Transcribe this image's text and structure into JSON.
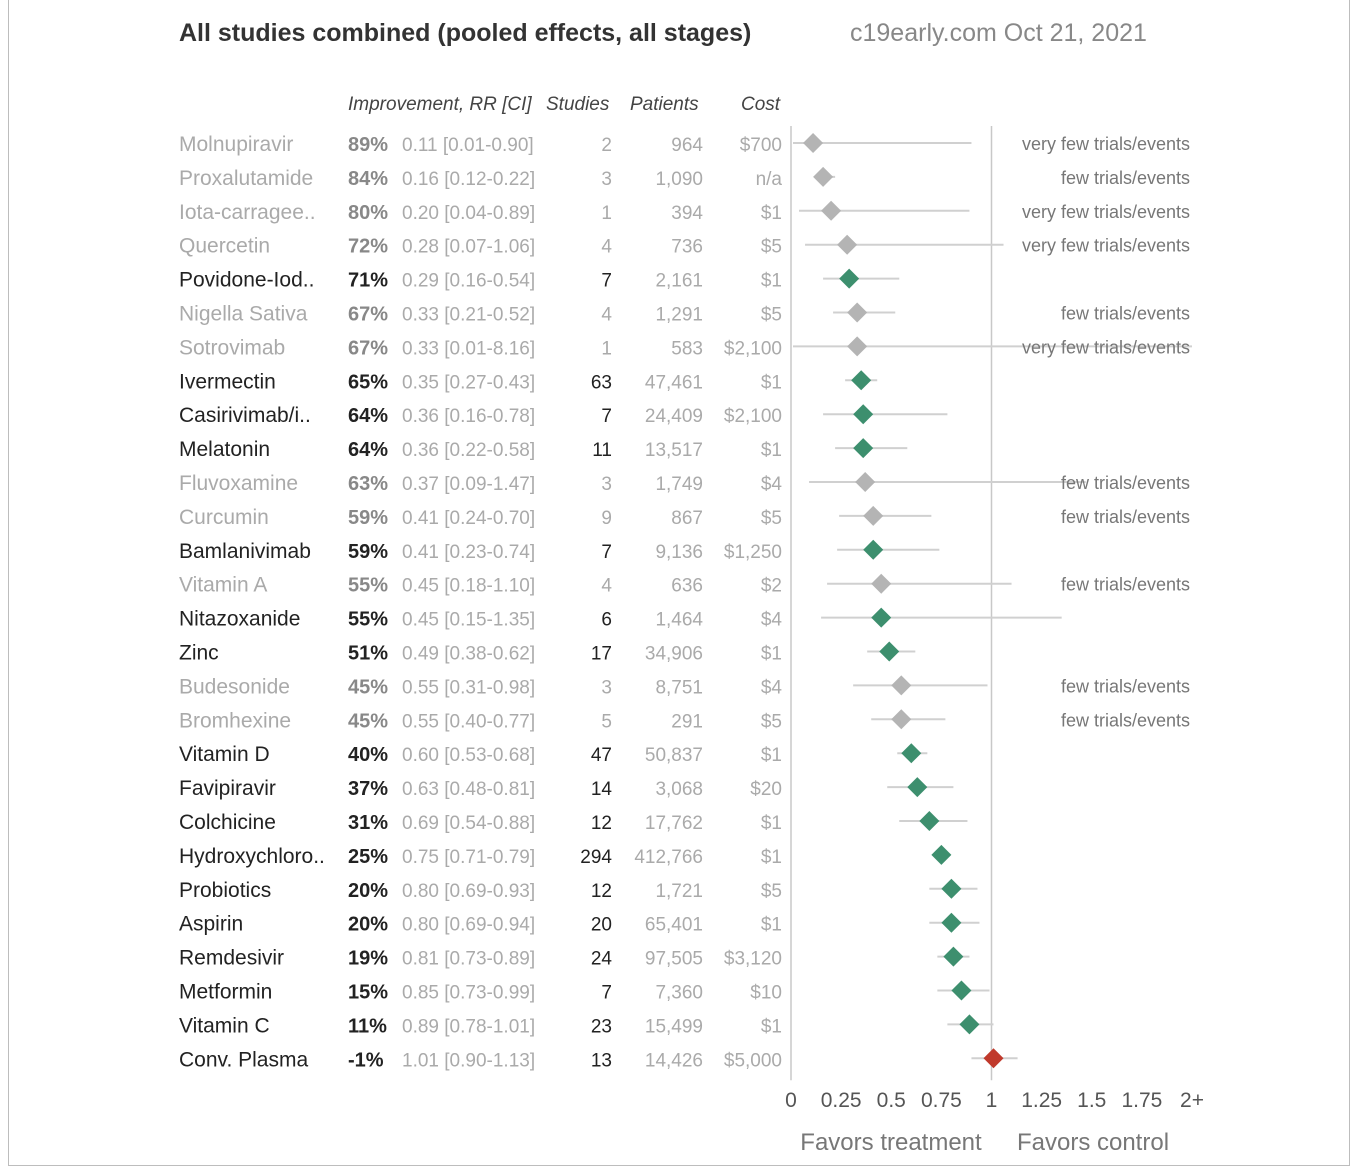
{
  "title": "All studies combined (pooled effects, all stages)",
  "source": "c19early.com Oct 21, 2021",
  "headers": {
    "improvement": "Improvement, RR [CI]",
    "studies": "Studies",
    "patients": "Patients",
    "cost": "Cost"
  },
  "colors": {
    "positive": "#3d8f6e",
    "negative": "#c0392b",
    "gray_marker": "#b4b4b4",
    "ci_line": "#d0d0d0",
    "text_dark": "#222222",
    "text_light": "#aaaaaa"
  },
  "chart_data": {
    "type": "forest",
    "x_axis": {
      "ticks": [
        "0",
        "0.25",
        "0.5",
        "0.75",
        "1",
        "1.25",
        "1.5",
        "1.75",
        "2+"
      ],
      "range": [
        0,
        2
      ],
      "left_label": "Favors treatment",
      "right_label": "Favors control"
    },
    "rows": [
      {
        "name": "Molnupiravir",
        "improvement": "89%",
        "rr": 0.11,
        "ci": [
          0.01,
          0.9
        ],
        "ci_text": "0.11 [0.01-0.90]",
        "studies": "2",
        "patients": "964",
        "cost": "$700",
        "note": "very few trials/events",
        "status": "gray"
      },
      {
        "name": "Proxalutamide",
        "improvement": "84%",
        "rr": 0.16,
        "ci": [
          0.12,
          0.22
        ],
        "ci_text": "0.16 [0.12-0.22]",
        "studies": "3",
        "patients": "1,090",
        "cost": "n/a",
        "note": "few trials/events",
        "status": "gray"
      },
      {
        "name": "Iota-carragee..",
        "improvement": "80%",
        "rr": 0.2,
        "ci": [
          0.04,
          0.89
        ],
        "ci_text": "0.20 [0.04-0.89]",
        "studies": "1",
        "patients": "394",
        "cost": "$1",
        "note": "very few trials/events",
        "status": "gray"
      },
      {
        "name": "Quercetin",
        "improvement": "72%",
        "rr": 0.28,
        "ci": [
          0.07,
          1.06
        ],
        "ci_text": "0.28 [0.07-1.06]",
        "studies": "4",
        "patients": "736",
        "cost": "$5",
        "note": "very few trials/events",
        "status": "gray"
      },
      {
        "name": "Povidone-Iod..",
        "improvement": "71%",
        "rr": 0.29,
        "ci": [
          0.16,
          0.54
        ],
        "ci_text": "0.29 [0.16-0.54]",
        "studies": "7",
        "patients": "2,161",
        "cost": "$1",
        "note": "",
        "status": "positive"
      },
      {
        "name": "Nigella Sativa",
        "improvement": "67%",
        "rr": 0.33,
        "ci": [
          0.21,
          0.52
        ],
        "ci_text": "0.33 [0.21-0.52]",
        "studies": "4",
        "patients": "1,291",
        "cost": "$5",
        "note": "few trials/events",
        "status": "gray"
      },
      {
        "name": "Sotrovimab",
        "improvement": "67%",
        "rr": 0.33,
        "ci": [
          0.01,
          8.16
        ],
        "ci_text": "0.33 [0.01-8.16]",
        "studies": "1",
        "patients": "583",
        "cost": "$2,100",
        "note": "very few trials/events",
        "status": "gray"
      },
      {
        "name": "Ivermectin",
        "improvement": "65%",
        "rr": 0.35,
        "ci": [
          0.27,
          0.43
        ],
        "ci_text": "0.35 [0.27-0.43]",
        "studies": "63",
        "patients": "47,461",
        "cost": "$1",
        "note": "",
        "status": "positive"
      },
      {
        "name": "Casirivimab/i..",
        "improvement": "64%",
        "rr": 0.36,
        "ci": [
          0.16,
          0.78
        ],
        "ci_text": "0.36 [0.16-0.78]",
        "studies": "7",
        "patients": "24,409",
        "cost": "$2,100",
        "note": "",
        "status": "positive"
      },
      {
        "name": "Melatonin",
        "improvement": "64%",
        "rr": 0.36,
        "ci": [
          0.22,
          0.58
        ],
        "ci_text": "0.36 [0.22-0.58]",
        "studies": "11",
        "patients": "13,517",
        "cost": "$1",
        "note": "",
        "status": "positive"
      },
      {
        "name": "Fluvoxamine",
        "improvement": "63%",
        "rr": 0.37,
        "ci": [
          0.09,
          1.47
        ],
        "ci_text": "0.37 [0.09-1.47]",
        "studies": "3",
        "patients": "1,749",
        "cost": "$4",
        "note": "few trials/events",
        "status": "gray"
      },
      {
        "name": "Curcumin",
        "improvement": "59%",
        "rr": 0.41,
        "ci": [
          0.24,
          0.7
        ],
        "ci_text": "0.41 [0.24-0.70]",
        "studies": "9",
        "patients": "867",
        "cost": "$5",
        "note": "few trials/events",
        "status": "gray"
      },
      {
        "name": "Bamlanivimab",
        "improvement": "59%",
        "rr": 0.41,
        "ci": [
          0.23,
          0.74
        ],
        "ci_text": "0.41 [0.23-0.74]",
        "studies": "7",
        "patients": "9,136",
        "cost": "$1,250",
        "note": "",
        "status": "positive"
      },
      {
        "name": "Vitamin A",
        "improvement": "55%",
        "rr": 0.45,
        "ci": [
          0.18,
          1.1
        ],
        "ci_text": "0.45 [0.18-1.10]",
        "studies": "4",
        "patients": "636",
        "cost": "$2",
        "note": "few trials/events",
        "status": "gray"
      },
      {
        "name": "Nitazoxanide",
        "improvement": "55%",
        "rr": 0.45,
        "ci": [
          0.15,
          1.35
        ],
        "ci_text": "0.45 [0.15-1.35]",
        "studies": "6",
        "patients": "1,464",
        "cost": "$4",
        "note": "",
        "status": "positive"
      },
      {
        "name": "Zinc",
        "improvement": "51%",
        "rr": 0.49,
        "ci": [
          0.38,
          0.62
        ],
        "ci_text": "0.49 [0.38-0.62]",
        "studies": "17",
        "patients": "34,906",
        "cost": "$1",
        "note": "",
        "status": "positive"
      },
      {
        "name": "Budesonide",
        "improvement": "45%",
        "rr": 0.55,
        "ci": [
          0.31,
          0.98
        ],
        "ci_text": "0.55 [0.31-0.98]",
        "studies": "3",
        "patients": "8,751",
        "cost": "$4",
        "note": "few trials/events",
        "status": "gray"
      },
      {
        "name": "Bromhexine",
        "improvement": "45%",
        "rr": 0.55,
        "ci": [
          0.4,
          0.77
        ],
        "ci_text": "0.55 [0.40-0.77]",
        "studies": "5",
        "patients": "291",
        "cost": "$5",
        "note": "few trials/events",
        "status": "gray"
      },
      {
        "name": "Vitamin D",
        "improvement": "40%",
        "rr": 0.6,
        "ci": [
          0.53,
          0.68
        ],
        "ci_text": "0.60 [0.53-0.68]",
        "studies": "47",
        "patients": "50,837",
        "cost": "$1",
        "note": "",
        "status": "positive"
      },
      {
        "name": "Favipiravir",
        "improvement": "37%",
        "rr": 0.63,
        "ci": [
          0.48,
          0.81
        ],
        "ci_text": "0.63 [0.48-0.81]",
        "studies": "14",
        "patients": "3,068",
        "cost": "$20",
        "note": "",
        "status": "positive"
      },
      {
        "name": "Colchicine",
        "improvement": "31%",
        "rr": 0.69,
        "ci": [
          0.54,
          0.88
        ],
        "ci_text": "0.69 [0.54-0.88]",
        "studies": "12",
        "patients": "17,762",
        "cost": "$1",
        "note": "",
        "status": "positive"
      },
      {
        "name": "Hydroxychloro..",
        "improvement": "25%",
        "rr": 0.75,
        "ci": [
          0.71,
          0.79
        ],
        "ci_text": "0.75 [0.71-0.79]",
        "studies": "294",
        "patients": "412,766",
        "cost": "$1",
        "note": "",
        "status": "positive"
      },
      {
        "name": "Probiotics",
        "improvement": "20%",
        "rr": 0.8,
        "ci": [
          0.69,
          0.93
        ],
        "ci_text": "0.80 [0.69-0.93]",
        "studies": "12",
        "patients": "1,721",
        "cost": "$5",
        "note": "",
        "status": "positive"
      },
      {
        "name": "Aspirin",
        "improvement": "20%",
        "rr": 0.8,
        "ci": [
          0.69,
          0.94
        ],
        "ci_text": "0.80 [0.69-0.94]",
        "studies": "20",
        "patients": "65,401",
        "cost": "$1",
        "note": "",
        "status": "positive"
      },
      {
        "name": "Remdesivir",
        "improvement": "19%",
        "rr": 0.81,
        "ci": [
          0.73,
          0.89
        ],
        "ci_text": "0.81 [0.73-0.89]",
        "studies": "24",
        "patients": "97,505",
        "cost": "$3,120",
        "note": "",
        "status": "positive"
      },
      {
        "name": "Metformin",
        "improvement": "15%",
        "rr": 0.85,
        "ci": [
          0.73,
          0.99
        ],
        "ci_text": "0.85 [0.73-0.99]",
        "studies": "7",
        "patients": "7,360",
        "cost": "$10",
        "note": "",
        "status": "positive"
      },
      {
        "name": "Vitamin C",
        "improvement": "11%",
        "rr": 0.89,
        "ci": [
          0.78,
          1.01
        ],
        "ci_text": "0.89 [0.78-1.01]",
        "studies": "23",
        "patients": "15,499",
        "cost": "$1",
        "note": "",
        "status": "positive"
      },
      {
        "name": "Conv. Plasma",
        "improvement": "-1%",
        "rr": 1.01,
        "ci": [
          0.9,
          1.13
        ],
        "ci_text": "1.01 [0.90-1.13]",
        "studies": "13",
        "patients": "14,426",
        "cost": "$5,000",
        "note": "",
        "status": "negative"
      }
    ]
  }
}
